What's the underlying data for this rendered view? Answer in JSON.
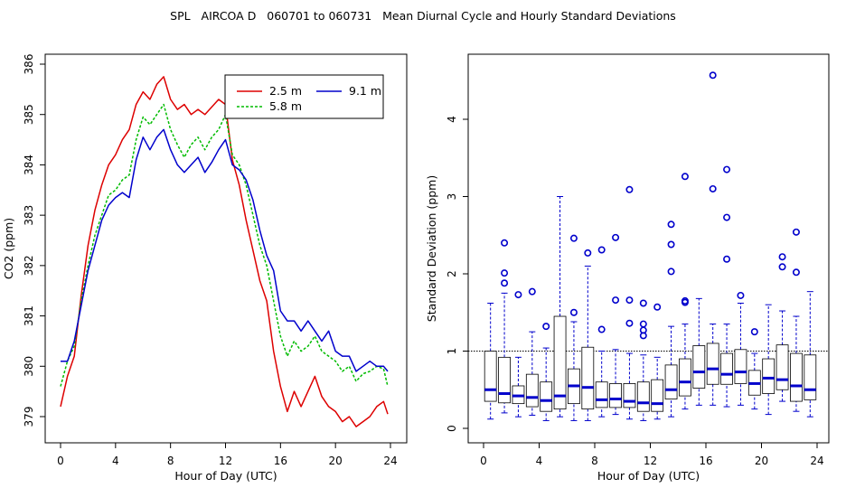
{
  "title": "SPL   AIRCOA D   060701 to 060731   Mean Diurnal Cycle and Hourly Standard Deviations",
  "chart_data": [
    {
      "type": "line",
      "xlabel": "Hour of Day (UTC)",
      "ylabel": "CO2 (ppm)",
      "xlim": [
        0,
        24
      ],
      "ylim": [
        378.7,
        386
      ],
      "xticks": [
        "0",
        "4",
        "8",
        "12",
        "16",
        "20",
        "24"
      ],
      "yticks": [
        "379",
        "380",
        "381",
        "382",
        "383",
        "384",
        "385",
        "386"
      ],
      "legend": {
        "position": "top-right",
        "labels": [
          "2.5 m",
          "5.8 m",
          "9.1 m"
        ]
      },
      "series": [
        {
          "name": "2.5 m",
          "color": "#dd0000",
          "x": [
            0,
            0.5,
            1,
            1.5,
            2,
            2.5,
            3,
            3.5,
            4,
            4.5,
            5,
            5.5,
            6,
            6.5,
            7,
            7.5,
            8,
            8.5,
            9,
            9.5,
            10,
            10.5,
            11,
            11.5,
            12,
            12.5,
            13,
            13.5,
            14,
            14.5,
            15,
            15.5,
            16,
            16.5,
            17,
            17.5,
            18,
            18.5,
            19,
            19.5,
            20,
            20.5,
            21,
            21.5,
            22,
            22.5,
            23,
            23.5,
            23.8
          ],
          "y": [
            379.2,
            379.8,
            380.2,
            381.4,
            382.4,
            383.1,
            383.6,
            384.0,
            384.2,
            384.5,
            384.7,
            385.2,
            385.45,
            385.3,
            385.6,
            385.75,
            385.3,
            385.1,
            385.2,
            385.0,
            385.1,
            385.0,
            385.15,
            385.3,
            385.2,
            384.1,
            383.6,
            382.9,
            382.3,
            381.7,
            381.3,
            380.3,
            379.6,
            379.1,
            379.5,
            379.2,
            379.5,
            379.8,
            379.4,
            379.2,
            379.1,
            378.9,
            379.0,
            378.8,
            378.9,
            379.0,
            379.2,
            379.3,
            379.05
          ]
        },
        {
          "name": "5.8 m",
          "color": "#00bb00",
          "x": [
            0,
            0.5,
            1,
            1.5,
            2,
            2.5,
            3,
            3.5,
            4,
            4.5,
            5,
            5.5,
            6,
            6.5,
            7,
            7.5,
            8,
            8.5,
            9,
            9.5,
            10,
            10.5,
            11,
            11.5,
            12,
            12.5,
            13,
            13.5,
            14,
            14.5,
            15,
            15.5,
            16,
            16.5,
            17,
            17.5,
            18,
            18.5,
            19,
            19.5,
            20,
            20.5,
            21,
            21.5,
            22,
            22.5,
            23,
            23.5,
            23.8
          ],
          "y": [
            379.6,
            380.1,
            380.4,
            381.3,
            382.0,
            382.6,
            383.0,
            383.4,
            383.5,
            383.7,
            383.8,
            384.5,
            384.95,
            384.8,
            385.0,
            385.2,
            384.7,
            384.4,
            384.15,
            384.4,
            384.55,
            384.3,
            384.55,
            384.7,
            385.0,
            384.2,
            384.0,
            383.6,
            383.0,
            382.4,
            382.0,
            381.3,
            380.6,
            380.2,
            380.5,
            380.3,
            380.4,
            380.6,
            380.3,
            380.2,
            380.1,
            379.9,
            380.0,
            379.7,
            379.85,
            379.9,
            380.0,
            379.95,
            379.6
          ]
        },
        {
          "name": "9.1 m",
          "color": "#0000cc",
          "x": [
            0,
            0.5,
            1,
            1.5,
            2,
            2.5,
            3,
            3.5,
            4,
            4.5,
            5,
            5.5,
            6,
            6.5,
            7,
            7.5,
            8,
            8.5,
            9,
            9.5,
            10,
            10.5,
            11,
            11.5,
            12,
            12.5,
            13,
            13.5,
            14,
            14.5,
            15,
            15.5,
            16,
            16.5,
            17,
            17.5,
            18,
            18.5,
            19,
            19.5,
            20,
            20.5,
            21,
            21.5,
            22,
            22.5,
            23,
            23.5,
            23.8
          ],
          "y": [
            380.1,
            380.1,
            380.5,
            381.2,
            381.9,
            382.4,
            382.9,
            383.2,
            383.35,
            383.45,
            383.35,
            384.1,
            384.55,
            384.3,
            384.55,
            384.7,
            384.3,
            384.0,
            383.85,
            384.0,
            384.15,
            383.85,
            384.05,
            384.3,
            384.5,
            384.0,
            383.9,
            383.7,
            383.3,
            382.7,
            382.2,
            381.9,
            381.1,
            380.9,
            380.9,
            380.7,
            380.9,
            380.7,
            380.5,
            380.7,
            380.3,
            380.2,
            380.2,
            379.9,
            380.0,
            380.1,
            380.0,
            380.0,
            379.9
          ]
        }
      ]
    },
    {
      "type": "box",
      "xlabel": "Hour of Day (UTC)",
      "ylabel": "Standard Deviation (ppm)",
      "xlim": [
        0,
        24
      ],
      "ylim": [
        0,
        4.6
      ],
      "xticks": [
        "0",
        "4",
        "8",
        "12",
        "16",
        "20",
        "24"
      ],
      "yticks": [
        "0",
        "1",
        "2",
        "3",
        "4"
      ],
      "reference_line": 1,
      "color": "#0000cc",
      "boxes": [
        {
          "hour": 0.5,
          "lo": 0.12,
          "q1": 0.35,
          "med": 0.5,
          "q3": 1.0,
          "hi": 1.62,
          "outliers": []
        },
        {
          "hour": 1.5,
          "lo": 0.2,
          "q1": 0.33,
          "med": 0.45,
          "q3": 0.92,
          "hi": 1.75,
          "outliers": [
            1.88,
            2.01,
            2.4
          ]
        },
        {
          "hour": 2.5,
          "lo": 0.15,
          "q1": 0.32,
          "med": 0.42,
          "q3": 0.55,
          "hi": 0.92,
          "outliers": [
            1.73
          ]
        },
        {
          "hour": 3.5,
          "lo": 0.17,
          "q1": 0.28,
          "med": 0.4,
          "q3": 0.7,
          "hi": 1.25,
          "outliers": [
            1.77
          ]
        },
        {
          "hour": 4.5,
          "lo": 0.1,
          "q1": 0.22,
          "med": 0.36,
          "q3": 0.6,
          "hi": 1.04,
          "outliers": [
            1.32
          ]
        },
        {
          "hour": 5.5,
          "lo": 0.15,
          "q1": 0.25,
          "med": 0.42,
          "q3": 1.45,
          "hi": 3.0,
          "outliers": []
        },
        {
          "hour": 6.5,
          "lo": 0.1,
          "q1": 0.32,
          "med": 0.55,
          "q3": 0.77,
          "hi": 1.38,
          "outliers": [
            1.5,
            2.46
          ]
        },
        {
          "hour": 7.5,
          "lo": 0.1,
          "q1": 0.25,
          "med": 0.53,
          "q3": 1.05,
          "hi": 2.1,
          "outliers": [
            2.27
          ]
        },
        {
          "hour": 8.5,
          "lo": 0.15,
          "q1": 0.27,
          "med": 0.37,
          "q3": 0.6,
          "hi": 1.0,
          "outliers": [
            1.28,
            2.31
          ]
        },
        {
          "hour": 9.5,
          "lo": 0.18,
          "q1": 0.27,
          "med": 0.38,
          "q3": 0.58,
          "hi": 1.02,
          "outliers": [
            1.66,
            2.47
          ]
        },
        {
          "hour": 10.5,
          "lo": 0.12,
          "q1": 0.27,
          "med": 0.35,
          "q3": 0.58,
          "hi": 0.97,
          "outliers": [
            1.36,
            1.66,
            3.09
          ]
        },
        {
          "hour": 11.5,
          "lo": 0.1,
          "q1": 0.22,
          "med": 0.33,
          "q3": 0.6,
          "hi": 0.95,
          "outliers": [
            1.2,
            1.27,
            1.35,
            1.62
          ]
        },
        {
          "hour": 12.5,
          "lo": 0.12,
          "q1": 0.22,
          "med": 0.32,
          "q3": 0.63,
          "hi": 0.92,
          "outliers": [
            1.57
          ]
        },
        {
          "hour": 13.5,
          "lo": 0.15,
          "q1": 0.38,
          "med": 0.5,
          "q3": 0.82,
          "hi": 1.32,
          "outliers": [
            2.03,
            2.38,
            2.64
          ]
        },
        {
          "hour": 14.5,
          "lo": 0.25,
          "q1": 0.42,
          "med": 0.6,
          "q3": 0.9,
          "hi": 1.35,
          "outliers": [
            1.63,
            1.65,
            3.26
          ]
        },
        {
          "hour": 15.5,
          "lo": 0.3,
          "q1": 0.52,
          "med": 0.73,
          "q3": 1.07,
          "hi": 1.68,
          "outliers": []
        },
        {
          "hour": 16.5,
          "lo": 0.3,
          "q1": 0.57,
          "med": 0.77,
          "q3": 1.1,
          "hi": 1.35,
          "outliers": [
            3.1,
            4.57
          ]
        },
        {
          "hour": 17.5,
          "lo": 0.28,
          "q1": 0.57,
          "med": 0.7,
          "q3": 0.97,
          "hi": 1.35,
          "outliers": [
            2.19,
            2.73,
            3.35
          ]
        },
        {
          "hour": 18.5,
          "lo": 0.3,
          "q1": 0.58,
          "med": 0.73,
          "q3": 1.02,
          "hi": 1.62,
          "outliers": [
            1.72
          ]
        },
        {
          "hour": 19.5,
          "lo": 0.25,
          "q1": 0.43,
          "med": 0.58,
          "q3": 0.75,
          "hi": 0.97,
          "outliers": [
            1.25
          ]
        },
        {
          "hour": 20.5,
          "lo": 0.18,
          "q1": 0.45,
          "med": 0.65,
          "q3": 0.9,
          "hi": 1.6,
          "outliers": []
        },
        {
          "hour": 21.5,
          "lo": 0.35,
          "q1": 0.5,
          "med": 0.63,
          "q3": 1.08,
          "hi": 1.52,
          "outliers": [
            2.09,
            2.22
          ]
        },
        {
          "hour": 22.5,
          "lo": 0.22,
          "q1": 0.35,
          "med": 0.55,
          "q3": 0.97,
          "hi": 1.45,
          "outliers": [
            2.02,
            2.54
          ]
        },
        {
          "hour": 23.5,
          "lo": 0.15,
          "q1": 0.37,
          "med": 0.5,
          "q3": 0.95,
          "hi": 1.77,
          "outliers": []
        }
      ]
    }
  ]
}
